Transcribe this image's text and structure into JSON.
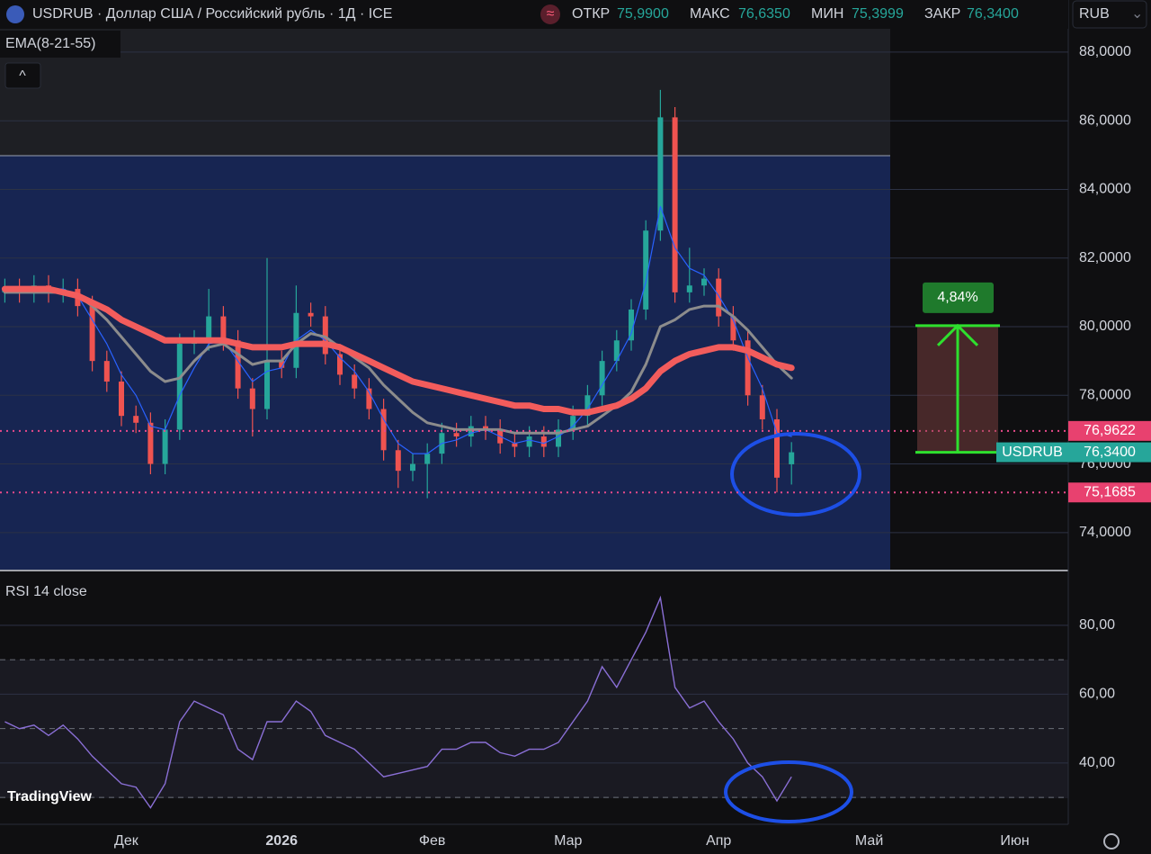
{
  "header": {
    "title": "USDRUB · Доллар США / Российский рубль · 1Д · ICE",
    "fields": [
      {
        "label": "ОТКР",
        "value": "75,9900"
      },
      {
        "label": "МАКС",
        "value": "76,6350"
      },
      {
        "label": "МИН",
        "value": "75,3999"
      },
      {
        "label": "ЗАКР",
        "value": "76,3400"
      }
    ],
    "currency": "RUB",
    "indicator": "EMA(8-21-55)",
    "watermark": "TradingView"
  },
  "chart_data": {
    "type": "candlestick",
    "x": [
      1,
      4,
      7,
      10,
      13,
      16,
      19,
      22,
      25,
      28,
      31,
      34,
      37,
      40,
      43,
      46,
      49,
      52,
      55,
      58,
      61,
      64,
      67,
      70,
      73,
      76,
      79,
      82,
      85,
      88,
      91,
      94,
      97,
      100,
      103,
      106,
      109,
      112,
      115,
      118,
      121,
      124,
      127,
      130,
      133,
      136,
      139,
      142,
      145,
      148,
      151,
      154,
      157,
      160,
      163
    ],
    "open": [
      81.0,
      81.1,
      81.0,
      81.2,
      81.0,
      81.1,
      80.6,
      79.0,
      78.4,
      77.4,
      77.2,
      76.0,
      77.0,
      79.5,
      79.6,
      80.3,
      79.6,
      78.2,
      77.6,
      79.0,
      78.8,
      80.4,
      80.3,
      79.2,
      78.6,
      78.2,
      77.6,
      76.4,
      75.8,
      76.0,
      76.3,
      76.9,
      76.8,
      77.1,
      77.0,
      76.6,
      76.5,
      76.8,
      76.5,
      77.0,
      77.4,
      78.0,
      79.0,
      79.6,
      80.5,
      82.8,
      86.1,
      81.0,
      81.2,
      81.4,
      80.3,
      79.6,
      78.0,
      77.3,
      75.99
    ],
    "high": [
      81.4,
      81.4,
      81.5,
      81.5,
      81.4,
      81.4,
      80.9,
      79.3,
      78.7,
      77.7,
      77.5,
      77.3,
      79.8,
      79.9,
      81.1,
      80.6,
      79.9,
      78.5,
      82.0,
      79.3,
      81.2,
      80.7,
      80.6,
      79.5,
      78.9,
      78.5,
      77.9,
      76.7,
      76.3,
      76.6,
      77.2,
      77.2,
      77.4,
      77.4,
      77.3,
      76.9,
      77.1,
      77.1,
      77.3,
      77.7,
      78.3,
      79.3,
      79.9,
      80.8,
      83.1,
      86.9,
      86.4,
      82.3,
      81.7,
      81.7,
      80.6,
      79.9,
      78.3,
      77.6,
      76.635
    ],
    "low": [
      80.7,
      80.7,
      80.7,
      80.7,
      80.7,
      80.3,
      78.7,
      78.1,
      77.1,
      76.9,
      75.7,
      75.7,
      76.7,
      79.2,
      79.3,
      79.3,
      77.9,
      76.8,
      77.3,
      78.5,
      78.5,
      80.0,
      78.9,
      78.3,
      77.9,
      77.3,
      76.1,
      75.3,
      75.5,
      75.0,
      76.0,
      76.5,
      76.5,
      76.7,
      76.3,
      76.2,
      76.2,
      76.2,
      76.2,
      76.7,
      77.1,
      77.7,
      78.7,
      79.3,
      80.2,
      82.5,
      80.7,
      80.7,
      80.9,
      80.0,
      79.3,
      77.7,
      77.0,
      75.17,
      75.3999
    ],
    "close": [
      81.1,
      81.0,
      81.2,
      81.0,
      81.1,
      80.6,
      79.0,
      78.4,
      77.4,
      77.2,
      76.0,
      77.0,
      79.5,
      79.6,
      80.3,
      79.6,
      78.2,
      77.6,
      79.0,
      78.8,
      80.4,
      80.3,
      79.2,
      78.6,
      78.2,
      77.6,
      76.4,
      75.8,
      76.0,
      76.3,
      76.9,
      76.8,
      77.1,
      77.0,
      76.6,
      76.5,
      76.8,
      76.5,
      77.0,
      77.4,
      78.0,
      79.0,
      79.6,
      80.5,
      82.8,
      86.1,
      81.0,
      81.2,
      81.4,
      80.3,
      79.6,
      78.0,
      77.3,
      75.6,
      76.34
    ],
    "up_color": "#26a69a",
    "down_color": "#ef5350",
    "lines": [
      {
        "color": "#2962ff",
        "values": [
          81.0,
          81.0,
          81.1,
          81.1,
          81.1,
          80.9,
          80.2,
          79.5,
          78.6,
          78.0,
          77.1,
          77.0,
          78.0,
          78.8,
          79.5,
          79.6,
          79.0,
          78.4,
          78.7,
          78.8,
          79.6,
          79.9,
          79.6,
          79.1,
          78.7,
          78.1,
          77.3,
          76.6,
          76.3,
          76.3,
          76.6,
          76.7,
          76.9,
          77.0,
          76.8,
          76.6,
          76.7,
          76.6,
          76.8,
          77.1,
          77.6,
          78.3,
          79.0,
          79.8,
          81.3,
          83.5,
          82.3,
          81.7,
          81.5,
          80.9,
          80.2,
          79.1,
          78.2,
          76.9,
          76.8
        ]
      },
      {
        "color": "#8c8c8c",
        "values": [
          81.0,
          81.0,
          81.0,
          81.0,
          81.0,
          80.9,
          80.6,
          80.2,
          79.7,
          79.2,
          78.7,
          78.4,
          78.5,
          79.0,
          79.4,
          79.5,
          79.2,
          78.9,
          79.0,
          79.0,
          79.5,
          79.8,
          79.7,
          79.4,
          79.1,
          78.8,
          78.3,
          77.9,
          77.5,
          77.2,
          77.1,
          77.0,
          77.0,
          77.0,
          77.0,
          76.9,
          76.9,
          76.9,
          76.9,
          77.0,
          77.1,
          77.4,
          77.7,
          78.1,
          78.9,
          80.0,
          80.2,
          80.5,
          80.6,
          80.6,
          80.3,
          79.9,
          79.4,
          78.9,
          78.5
        ]
      },
      {
        "color": "#f25c5c",
        "values": [
          81.1,
          81.1,
          81.1,
          81.1,
          81.0,
          80.9,
          80.7,
          80.5,
          80.2,
          80.0,
          79.8,
          79.6,
          79.6,
          79.6,
          79.6,
          79.6,
          79.5,
          79.4,
          79.4,
          79.4,
          79.5,
          79.5,
          79.5,
          79.4,
          79.2,
          79.0,
          78.8,
          78.6,
          78.4,
          78.3,
          78.2,
          78.1,
          78.0,
          77.9,
          77.8,
          77.7,
          77.7,
          77.6,
          77.6,
          77.5,
          77.5,
          77.6,
          77.7,
          77.9,
          78.2,
          78.7,
          79.0,
          79.2,
          79.3,
          79.4,
          79.4,
          79.3,
          79.1,
          78.9,
          78.8
        ]
      }
    ],
    "xlim": [
      0,
      220
    ],
    "xticks": [
      {
        "value": 26,
        "label": "Дек"
      },
      {
        "value": 58,
        "label": "2026"
      },
      {
        "value": 89,
        "label": "Фев"
      },
      {
        "value": 117,
        "label": "Мар"
      },
      {
        "value": 148,
        "label": "Апр"
      },
      {
        "value": 179,
        "label": "Май"
      },
      {
        "value": 209,
        "label": "Июн"
      }
    ],
    "ylim": [
      72.92,
      88.68
    ],
    "yticks": [
      {
        "value": 74,
        "label": "74,0000"
      },
      {
        "value": 76,
        "label": "76,0000"
      },
      {
        "value": 78,
        "label": "78,0000"
      },
      {
        "value": 80,
        "label": "80,0000"
      },
      {
        "value": 82,
        "label": "82,0000"
      },
      {
        "value": 84,
        "label": "84,0000"
      },
      {
        "value": 86,
        "label": "86,0000"
      },
      {
        "value": 88,
        "label": "88,0000"
      }
    ],
    "levels": [
      {
        "value": 76.9622,
        "label": "76,9622"
      },
      {
        "value": 75.1685,
        "label": "75,1685"
      }
    ],
    "last": {
      "name": "USDRUB",
      "value": 76.34,
      "label": "76,3400"
    },
    "measure": {
      "from": 76.34,
      "to": 80.03,
      "label": "4,84%"
    },
    "grid": true,
    "rsi": {
      "title": "RSI 14 close",
      "color": "#8a6fd6",
      "values": [
        52,
        50,
        51,
        48,
        51,
        47,
        42,
        38,
        34,
        33,
        27,
        34,
        52,
        58,
        56,
        54,
        44,
        41,
        52,
        52,
        58,
        55,
        48,
        46,
        44,
        40,
        36,
        37,
        38,
        39,
        44,
        44,
        46,
        46,
        43,
        42,
        44,
        44,
        46,
        52,
        58,
        68,
        62,
        70,
        78,
        88,
        62,
        56,
        58,
        52,
        47,
        40,
        36,
        29,
        36
      ],
      "ylim": [
        22.2,
        95.4
      ],
      "yticks": [
        {
          "value": 40,
          "label": "40,00"
        },
        {
          "value": 60,
          "label": "60,00"
        },
        {
          "value": 80,
          "label": "80,00"
        }
      ],
      "levels": [
        30,
        50,
        70
      ]
    }
  }
}
